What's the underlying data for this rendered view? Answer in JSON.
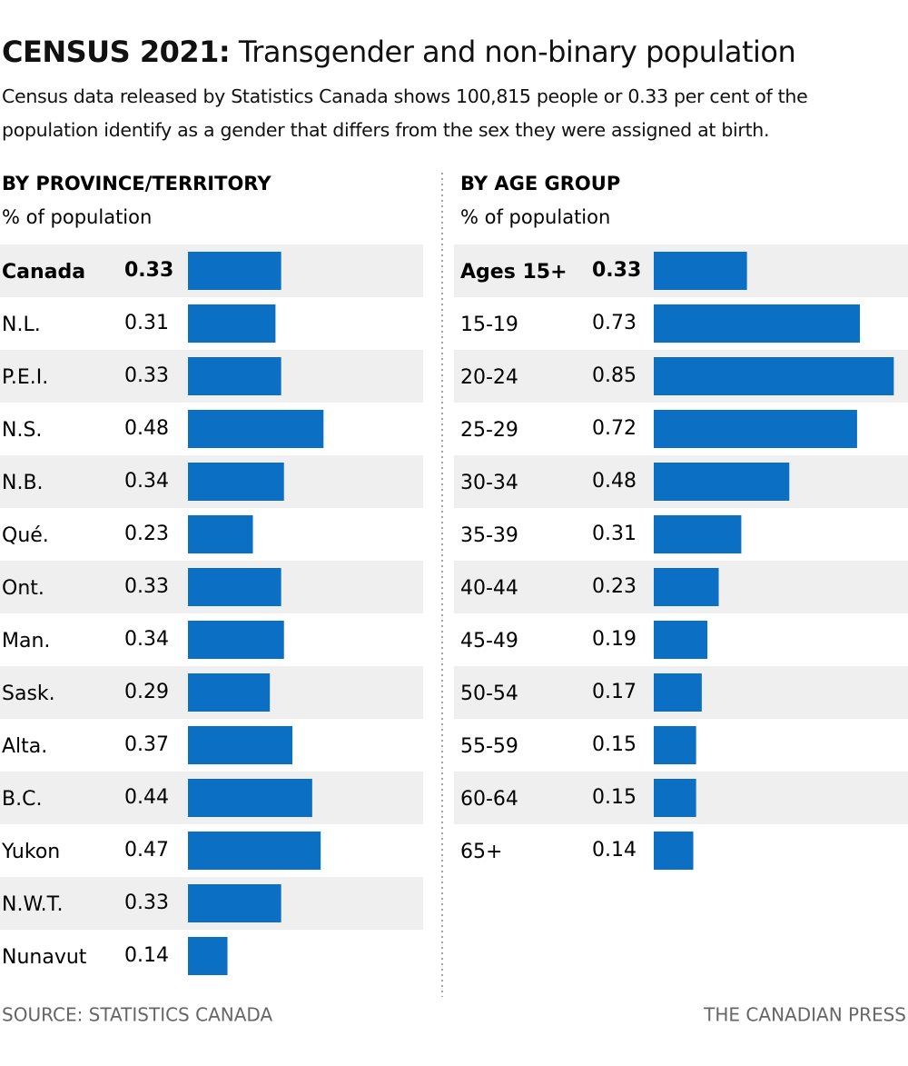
{
  "header": {
    "title_bold": "CENSUS 2021:",
    "title": "Transgender and non-binary population",
    "subtitle": "Census data released by Statistics Canada shows 100,815 people or 0.33 per cent of the population identify as a gender that differs from the sex they were assigned at birth."
  },
  "chart_data": [
    {
      "type": "bar",
      "title": "BY PROVINCE/TERRITORY",
      "subtitle": "% of population",
      "color": "#0b6fc4",
      "categories": [
        "Canada",
        "N.L.",
        "P.E.I.",
        "N.S.",
        "N.B.",
        "Qué.",
        "Ont.",
        "Man.",
        "Sask.",
        "Alta.",
        "B.C.",
        "Yukon",
        "N.W.T.",
        "Nunavut"
      ],
      "values": [
        0.33,
        0.31,
        0.33,
        0.48,
        0.34,
        0.23,
        0.33,
        0.34,
        0.29,
        0.37,
        0.44,
        0.47,
        0.33,
        0.14
      ]
    },
    {
      "type": "bar",
      "title": "BY AGE GROUP",
      "subtitle": "% of population",
      "color": "#0b6fc4",
      "categories": [
        "Ages 15+",
        "15-19",
        "20-24",
        "25-29",
        "30-34",
        "35-39",
        "40-44",
        "45-49",
        "50-54",
        "55-59",
        "60-64",
        "65+"
      ],
      "values": [
        0.33,
        0.73,
        0.85,
        0.72,
        0.48,
        0.31,
        0.23,
        0.19,
        0.17,
        0.15,
        0.15,
        0.14
      ]
    }
  ],
  "footer": {
    "source": "SOURCE: STATISTICS CANADA",
    "credit": "THE CANADIAN PRESS"
  }
}
